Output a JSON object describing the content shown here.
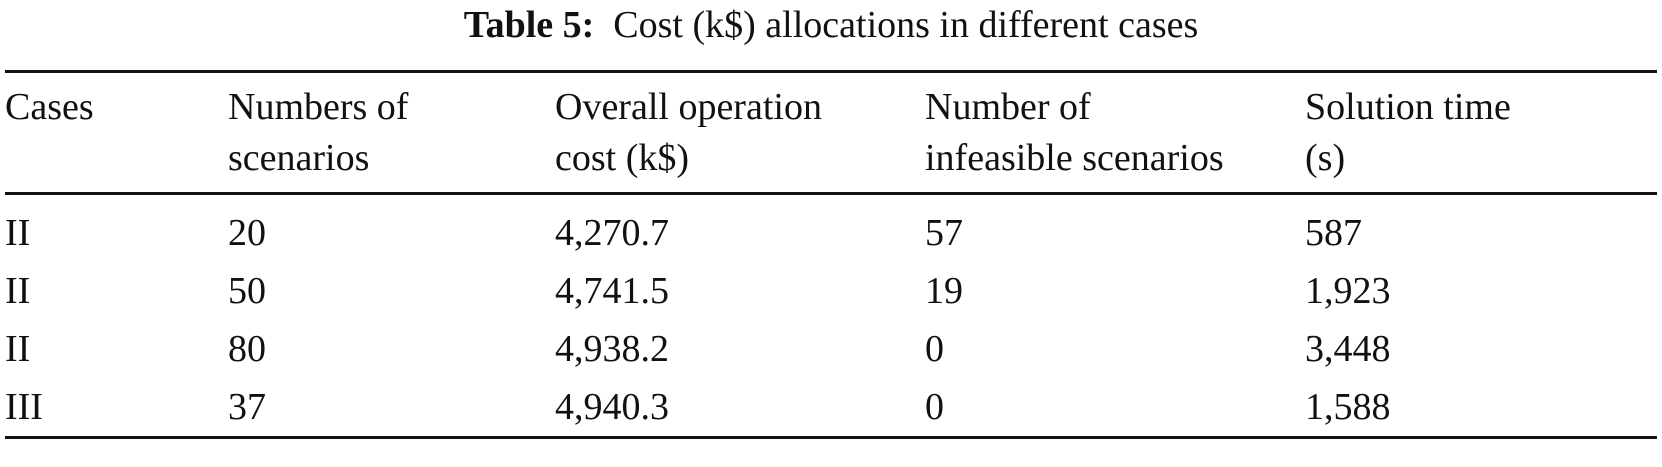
{
  "caption": {
    "label": "Table 5:",
    "text": "Cost (k$) allocations in different cases"
  },
  "table": {
    "headers": [
      [
        "Cases",
        ""
      ],
      [
        "Numbers of",
        "scenarios"
      ],
      [
        "Overall operation",
        "cost (k$)"
      ],
      [
        "Number of",
        "infeasible scenarios"
      ],
      [
        "Solution time",
        "(s)"
      ]
    ],
    "rows": [
      [
        "II",
        "20",
        "4,270.7",
        "57",
        "587"
      ],
      [
        "II",
        "50",
        "4,741.5",
        "19",
        "1,923"
      ],
      [
        "II",
        "80",
        "4,938.2",
        "0",
        "3,448"
      ],
      [
        "III",
        "37",
        "4,940.3",
        "0",
        "1,588"
      ]
    ]
  }
}
